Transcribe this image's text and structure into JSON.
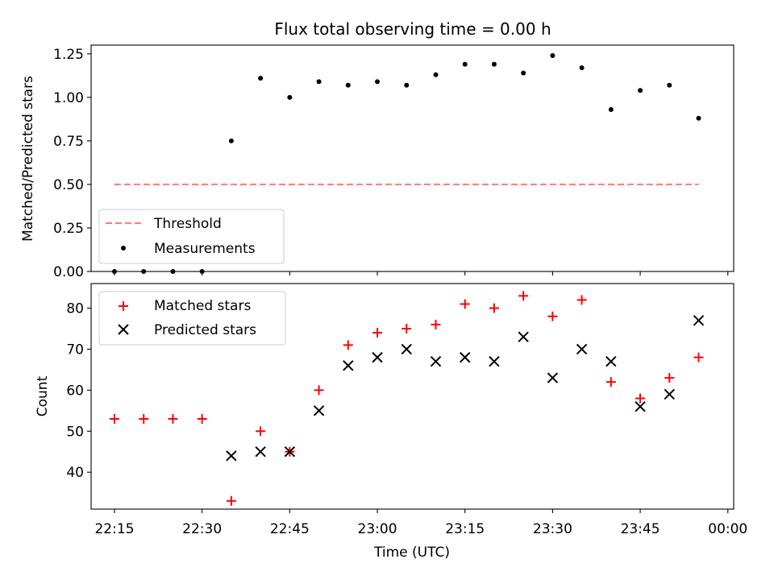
{
  "chart_data": [
    {
      "type": "scatter",
      "title": "Flux total observing time = 0.00 h",
      "xlabel": "",
      "ylabel": "Matched/Predicted stars",
      "xlim": [
        "22:11",
        "00:01"
      ],
      "ylim": [
        0,
        1.3
      ],
      "yticks": [
        "0.00",
        "0.25",
        "0.50",
        "0.75",
        "1.00",
        "1.25"
      ],
      "ytick_values": [
        0,
        0.25,
        0.5,
        0.75,
        1.0,
        1.25
      ],
      "grid": false,
      "legend": "lower-left",
      "series": [
        {
          "name": "Threshold",
          "kind": "dashed-line",
          "color": "#ff7f7f",
          "x": [
            "22:15",
            "23:55"
          ],
          "y": [
            0.5,
            0.5
          ]
        },
        {
          "name": "Measurements",
          "kind": "dot",
          "color": "#000000",
          "x": [
            "22:15",
            "22:20",
            "22:25",
            "22:30",
            "22:35",
            "22:40",
            "22:45",
            "22:50",
            "22:55",
            "23:00",
            "23:05",
            "23:10",
            "23:15",
            "23:20",
            "23:25",
            "23:30",
            "23:35",
            "23:40",
            "23:45",
            "23:50",
            "23:55"
          ],
          "y": [
            0,
            0,
            0,
            0,
            0.75,
            1.11,
            1.0,
            1.09,
            1.07,
            1.09,
            1.07,
            1.13,
            1.19,
            1.19,
            1.14,
            1.24,
            1.17,
            0.93,
            1.04,
            1.07,
            0.88
          ]
        }
      ]
    },
    {
      "type": "scatter",
      "title": "",
      "xlabel": "Time (UTC)",
      "ylabel": "Count",
      "xlim": [
        "22:11",
        "00:01"
      ],
      "ylim": [
        31,
        86
      ],
      "xticks": [
        "22:15",
        "22:30",
        "22:45",
        "23:00",
        "23:15",
        "23:30",
        "23:45",
        "00:00"
      ],
      "yticks": [
        "40",
        "50",
        "60",
        "70",
        "80"
      ],
      "ytick_values": [
        40,
        50,
        60,
        70,
        80
      ],
      "grid": false,
      "legend": "top-left",
      "series": [
        {
          "name": "Matched stars",
          "kind": "plus",
          "color": "#ff0000",
          "x": [
            "22:15",
            "22:20",
            "22:25",
            "22:30",
            "22:35",
            "22:40",
            "22:45",
            "22:50",
            "22:55",
            "23:00",
            "23:05",
            "23:10",
            "23:15",
            "23:20",
            "23:25",
            "23:30",
            "23:35",
            "23:40",
            "23:45",
            "23:50",
            "23:55"
          ],
          "y": [
            53,
            53,
            53,
            53,
            33,
            50,
            45,
            60,
            71,
            74,
            75,
            76,
            81,
            80,
            83,
            78,
            82,
            62,
            58,
            63,
            68
          ]
        },
        {
          "name": "Predicted stars",
          "kind": "cross",
          "color": "#000000",
          "x": [
            "22:35",
            "22:40",
            "22:45",
            "22:50",
            "22:55",
            "23:00",
            "23:05",
            "23:10",
            "23:15",
            "23:20",
            "23:25",
            "23:30",
            "23:35",
            "23:40",
            "23:45",
            "23:50",
            "23:55"
          ],
          "y": [
            44,
            45,
            45,
            55,
            66,
            68,
            70,
            67,
            68,
            67,
            73,
            63,
            70,
            67,
            56,
            59,
            77
          ]
        }
      ]
    }
  ]
}
